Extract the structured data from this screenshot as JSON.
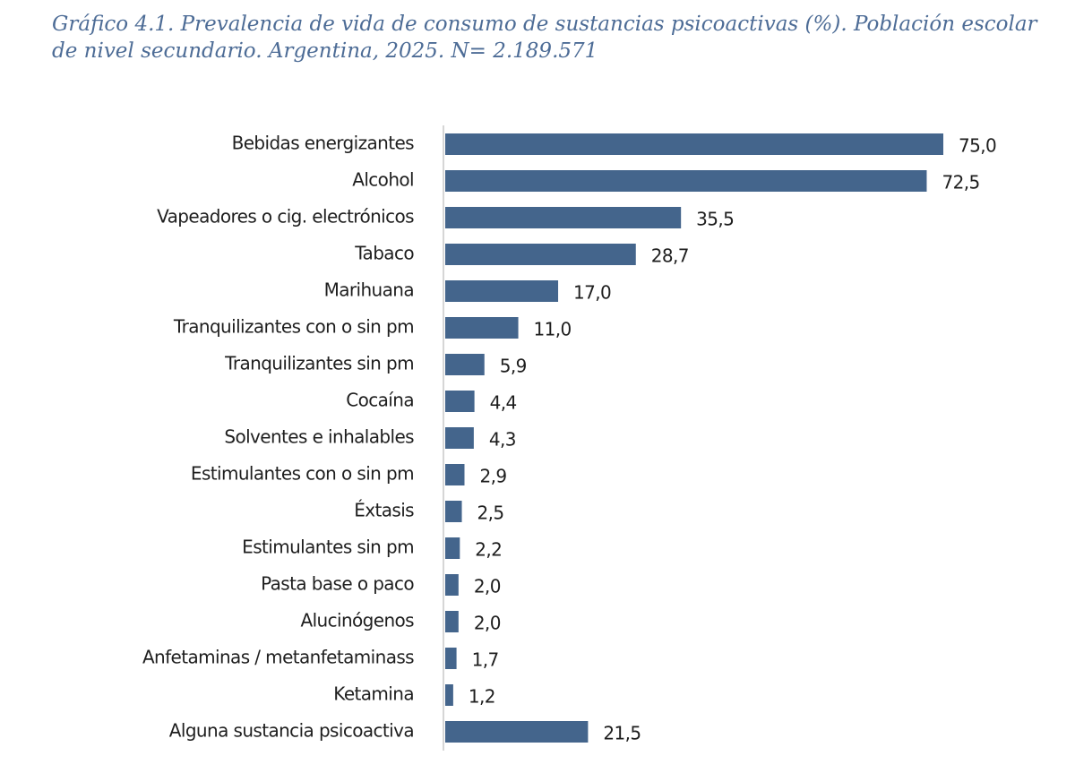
{
  "chart_data": {
    "type": "barh",
    "title": "Gráfico 4.1. Prevalencia de vida de consumo de sustancias psicoactivas (%). Población escolar de nivel secundario. Argentina, 2025. N= 2.189.571",
    "categories": [
      "Bebidas energizantes",
      "Alcohol",
      "Vapeadores o cig. electrónicos",
      "Tabaco",
      "Marihuana",
      "Tranquilizantes con o sin pm",
      "Tranquilizantes sin pm",
      "Cocaína",
      "Solventes e inhalables",
      "Estimulantes con o sin pm",
      "Éxtasis",
      "Estimulantes sin pm",
      "Pasta base o paco",
      "Alucinógenos",
      "Anfetaminas / metanfetaminass",
      "Ketamina",
      "Alguna sustancia psicoactiva"
    ],
    "values": [
      75.0,
      72.5,
      35.5,
      28.7,
      17.0,
      11.0,
      5.9,
      4.4,
      4.3,
      2.9,
      2.5,
      2.2,
      2.0,
      2.0,
      1.7,
      1.2,
      21.5
    ],
    "value_labels": [
      "75,0",
      "72,5",
      "35,5",
      "28,7",
      "17,0",
      "11,0",
      "5,9",
      "4,4",
      "4,3",
      "2,9",
      "2,5",
      "2,2",
      "2,0",
      "2,0",
      "1,7",
      "1,2",
      "21,5"
    ],
    "color": "#44658c"
  }
}
